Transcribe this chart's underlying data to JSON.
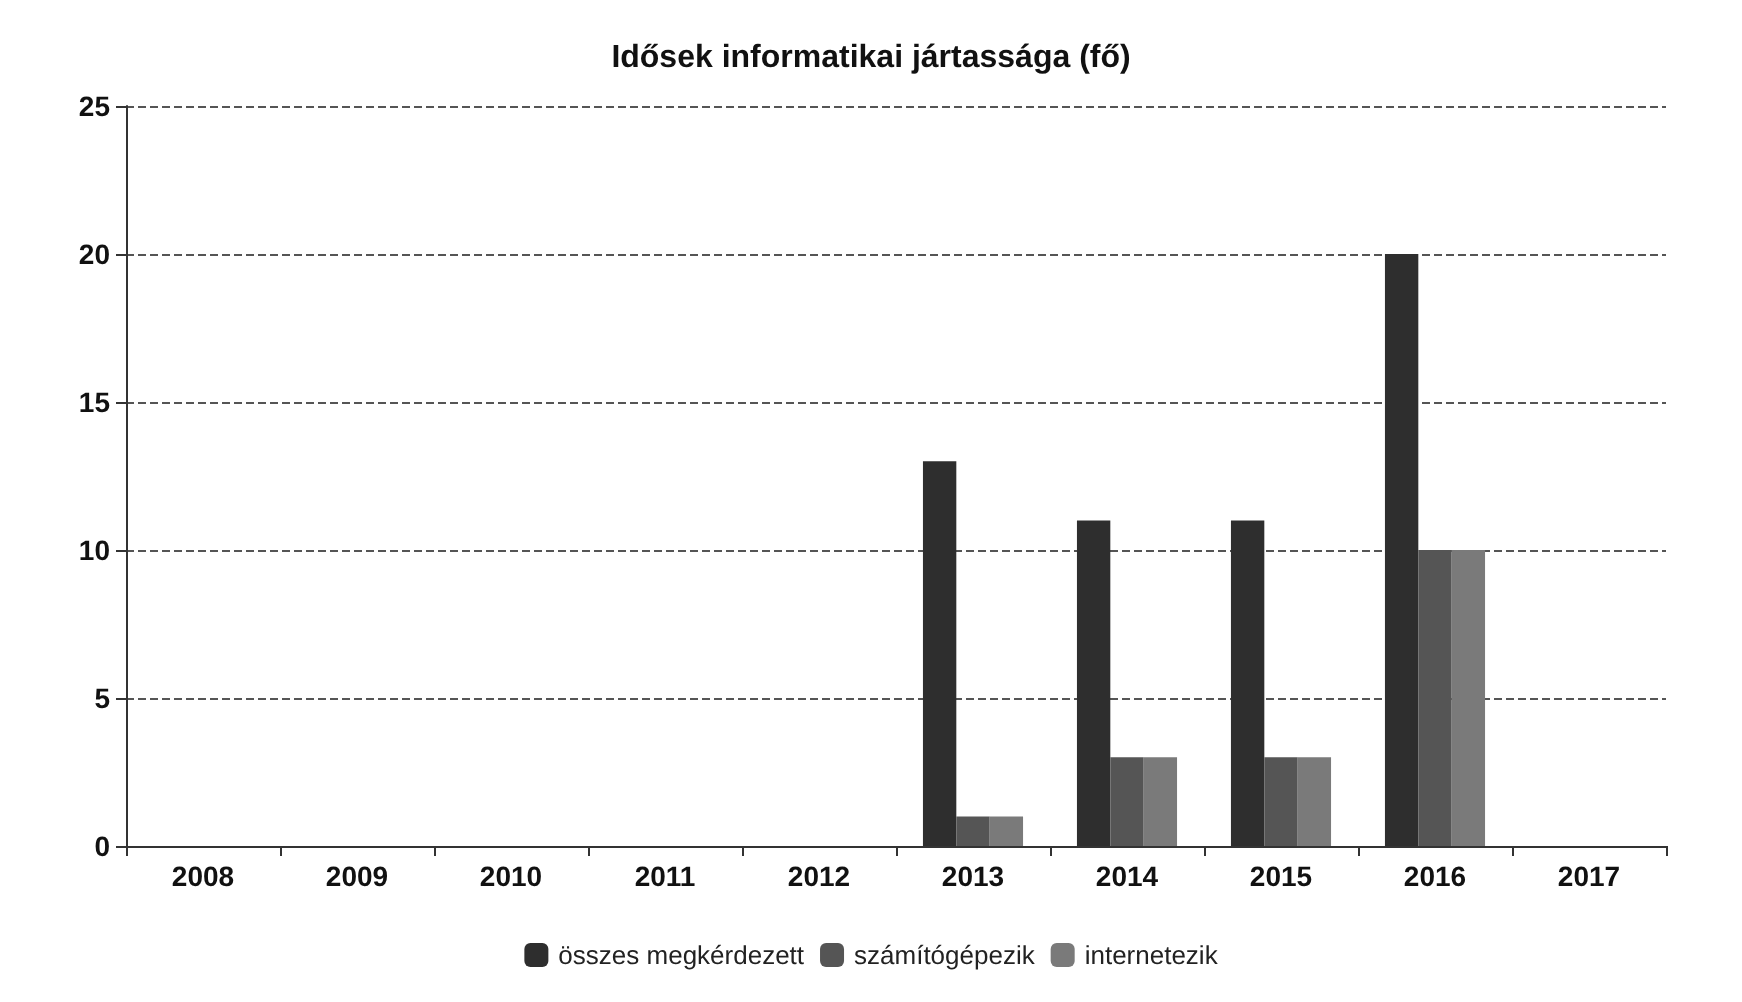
{
  "chart_data": {
    "type": "bar",
    "title": "Idősek informatikai jártassága (fő)",
    "categories": [
      "2008",
      "2009",
      "2010",
      "2011",
      "2012",
      "2013",
      "2014",
      "2015",
      "2016",
      "2017"
    ],
    "series": [
      {
        "name": "összes megkérdezett",
        "color": "#2e2e2e",
        "values": [
          null,
          null,
          null,
          null,
          null,
          13,
          11,
          11,
          20,
          null
        ]
      },
      {
        "name": "számítógépezik",
        "color": "#555555",
        "values": [
          null,
          null,
          null,
          null,
          null,
          1,
          3,
          3,
          10,
          null
        ]
      },
      {
        "name": "internetezik",
        "color": "#7a7a7a",
        "values": [
          null,
          null,
          null,
          null,
          null,
          1,
          3,
          3,
          10,
          null
        ]
      }
    ],
    "ylim": [
      0,
      25
    ],
    "yticks": [
      0,
      5,
      10,
      15,
      20,
      25
    ],
    "grid": "y",
    "legend": "bottom"
  }
}
